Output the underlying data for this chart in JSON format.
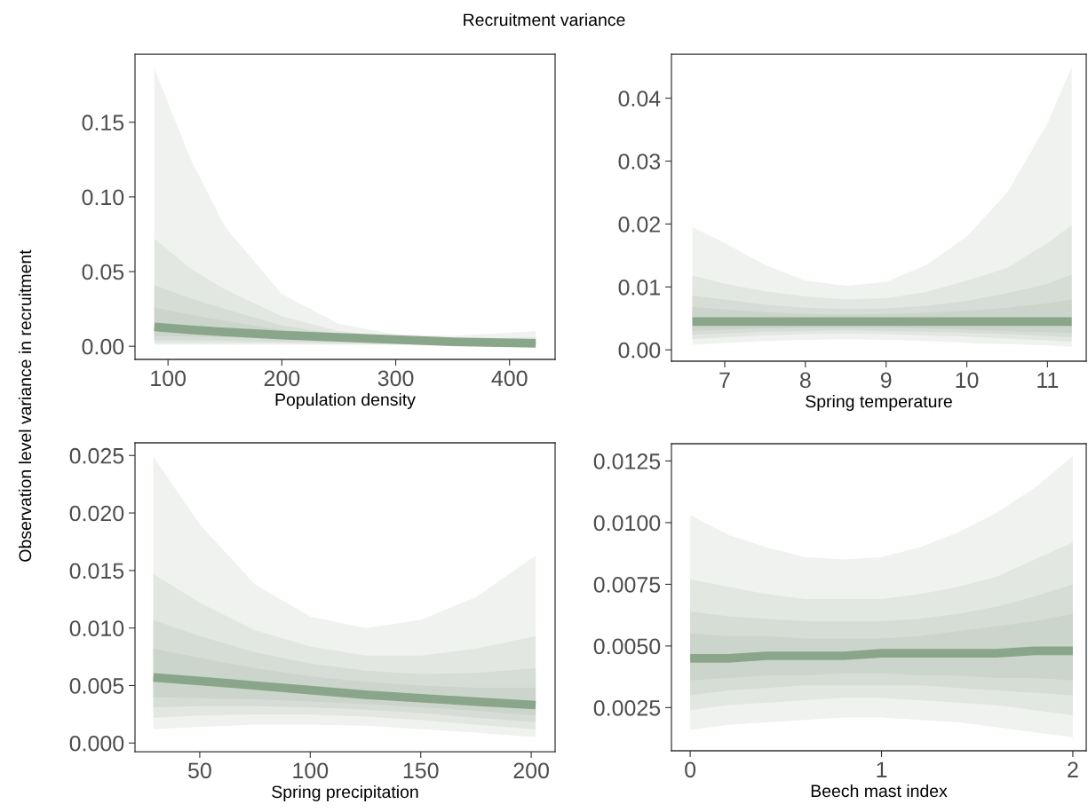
{
  "chart_data": [
    {
      "type": "line",
      "title": "Recruitment variance",
      "ylabel": "Observation level variance in recruitment",
      "xlabel": "Population density",
      "x": [
        88,
        120,
        150,
        200,
        250,
        300,
        350,
        423
      ],
      "xlim": [
        71,
        440
      ],
      "xticks": [
        100,
        200,
        300,
        400
      ],
      "ylim": [
        -0.0088,
        0.1956
      ],
      "yticks": [
        {
          "value": 0,
          "label": "0.00"
        },
        {
          "value": 0.05,
          "label": "0.05"
        },
        {
          "value": 0.1,
          "label": "0.10"
        },
        {
          "value": 0.15,
          "label": "0.15"
        }
      ],
      "series": [
        {
          "color": "#eff2ef",
          "values": [
            null,
            null,
            null,
            null,
            null,
            null,
            null,
            null
          ],
          "lower": [
            0.001,
            0.001,
            0.001,
            0.001,
            0.001,
            0.001,
            0.0005,
            0.0003
          ],
          "upper": [
            0.186,
            0.125,
            0.08,
            0.035,
            0.015,
            0.008,
            0.007,
            0.01
          ]
        },
        {
          "color": "#e2e7e2",
          "values": [
            null,
            null,
            null,
            null,
            null,
            null,
            null,
            null
          ],
          "lower": [
            0.002,
            0.002,
            0.002,
            0.002,
            0.0015,
            0.0012,
            0.001,
            0.0008
          ],
          "upper": [
            0.072,
            0.052,
            0.038,
            0.02,
            0.01,
            0.006,
            0.005,
            0.006
          ]
        },
        {
          "color": "#d6ddd6",
          "values": [
            null,
            null,
            null,
            null,
            null,
            null,
            null,
            null
          ],
          "lower": [
            0.004,
            0.004,
            0.0035,
            0.003,
            0.0025,
            0.002,
            0.0015,
            0.001
          ],
          "upper": [
            0.041,
            0.032,
            0.025,
            0.014,
            0.008,
            0.005,
            0.004,
            0.004
          ]
        },
        {
          "color": "#cbd5cb",
          "values": [
            null,
            null,
            null,
            null,
            null,
            null,
            null,
            null
          ],
          "lower": [
            0.007,
            0.0065,
            0.006,
            0.005,
            0.004,
            0.003,
            0.002,
            0.0015
          ],
          "upper": [
            0.026,
            0.021,
            0.017,
            0.011,
            0.007,
            0.005,
            0.003,
            0.003
          ]
        },
        {
          "color": "#8aa68a",
          "values": [
            0.013,
            0.011,
            0.0095,
            0.0075,
            0.006,
            0.0045,
            0.003,
            0.002
          ]
        }
      ]
    },
    {
      "type": "line",
      "xlabel": "Spring temperature",
      "x": [
        6.6,
        7,
        7.5,
        8,
        8.5,
        9,
        9.5,
        10,
        10.5,
        11,
        11.3
      ],
      "xlim": [
        6.34,
        11.48
      ],
      "xticks": [
        7,
        8,
        9,
        10,
        11
      ],
      "ylim": [
        -0.0018,
        0.047
      ],
      "yticks": [
        {
          "value": 0,
          "label": "0.00"
        },
        {
          "value": 0.01,
          "label": "0.01"
        },
        {
          "value": 0.02,
          "label": "0.02"
        },
        {
          "value": 0.03,
          "label": "0.03"
        },
        {
          "value": 0.04,
          "label": "0.04"
        }
      ],
      "series": [
        {
          "color": "#eff2ef",
          "values": [
            null,
            null,
            null,
            null,
            null,
            null,
            null,
            null,
            null,
            null,
            null
          ],
          "lower": [
            0.0008,
            0.0011,
            0.0014,
            0.0016,
            0.0017,
            0.0016,
            0.0014,
            0.0011,
            0.0009,
            0.0007,
            0.0005
          ],
          "upper": [
            0.0195,
            0.017,
            0.0135,
            0.011,
            0.0102,
            0.0108,
            0.0135,
            0.018,
            0.025,
            0.036,
            0.045
          ]
        },
        {
          "color": "#e2e7e2",
          "values": [
            null,
            null,
            null,
            null,
            null,
            null,
            null,
            null,
            null,
            null,
            null
          ],
          "lower": [
            0.0017,
            0.002,
            0.0023,
            0.0025,
            0.0026,
            0.0025,
            0.0023,
            0.0021,
            0.0018,
            0.0015,
            0.0013
          ],
          "upper": [
            0.0118,
            0.0105,
            0.0093,
            0.0085,
            0.008,
            0.0082,
            0.0092,
            0.011,
            0.013,
            0.017,
            0.0198
          ]
        },
        {
          "color": "#d6ddd6",
          "values": [
            null,
            null,
            null,
            null,
            null,
            null,
            null,
            null,
            null,
            null,
            null
          ],
          "lower": [
            0.0024,
            0.0026,
            0.0029,
            0.003,
            0.0031,
            0.003,
            0.0029,
            0.0027,
            0.0025,
            0.0022,
            0.002
          ],
          "upper": [
            0.0086,
            0.008,
            0.0072,
            0.0067,
            0.0065,
            0.0066,
            0.007,
            0.0078,
            0.009,
            0.0105,
            0.012
          ]
        },
        {
          "color": "#cbd5cb",
          "values": [
            null,
            null,
            null,
            null,
            null,
            null,
            null,
            null,
            null,
            null,
            null
          ],
          "lower": [
            0.003,
            0.0032,
            0.0034,
            0.0035,
            0.0035,
            0.0035,
            0.0034,
            0.0032,
            0.003,
            0.0028,
            0.0027
          ],
          "upper": [
            0.0068,
            0.0064,
            0.006,
            0.0057,
            0.0056,
            0.0057,
            0.0059,
            0.0062,
            0.0067,
            0.0074,
            0.008
          ]
        },
        {
          "color": "#8aa68a",
          "values": [
            0.0045,
            0.0045,
            0.0045,
            0.0045,
            0.0045,
            0.0045,
            0.0045,
            0.0045,
            0.0045,
            0.0045,
            0.0045
          ]
        }
      ]
    },
    {
      "type": "line",
      "xlabel": "Spring precipitation",
      "x": [
        29,
        50,
        75,
        100,
        125,
        150,
        175,
        202
      ],
      "xlim": [
        20.7,
        210.8
      ],
      "xticks": [
        50,
        100,
        150,
        200
      ],
      "ylim": [
        -0.00075,
        0.0261
      ],
      "yticks": [
        {
          "value": 0,
          "label": "0.000"
        },
        {
          "value": 0.005,
          "label": "0.005"
        },
        {
          "value": 0.01,
          "label": "0.010"
        },
        {
          "value": 0.015,
          "label": "0.015"
        },
        {
          "value": 0.02,
          "label": "0.020"
        },
        {
          "value": 0.025,
          "label": "0.025"
        }
      ],
      "series": [
        {
          "color": "#eff2ef",
          "values": [
            null,
            null,
            null,
            null,
            null,
            null,
            null,
            null
          ],
          "lower": [
            0.0012,
            0.0014,
            0.0016,
            0.0016,
            0.0015,
            0.0012,
            0.0009,
            0.0005
          ],
          "upper": [
            0.0249,
            0.019,
            0.0138,
            0.011,
            0.01,
            0.0107,
            0.0127,
            0.0163
          ]
        },
        {
          "color": "#e2e7e2",
          "values": [
            null,
            null,
            null,
            null,
            null,
            null,
            null,
            null
          ],
          "lower": [
            0.0022,
            0.0024,
            0.0025,
            0.0025,
            0.0023,
            0.002,
            0.0016,
            0.0012
          ],
          "upper": [
            0.0147,
            0.0122,
            0.0098,
            0.0084,
            0.0076,
            0.0076,
            0.0082,
            0.0093
          ]
        },
        {
          "color": "#d6ddd6",
          "values": [
            null,
            null,
            null,
            null,
            null,
            null,
            null,
            null
          ],
          "lower": [
            0.0031,
            0.0032,
            0.0032,
            0.0031,
            0.0029,
            0.0026,
            0.0022,
            0.0018
          ],
          "upper": [
            0.0107,
            0.0093,
            0.0079,
            0.0069,
            0.0063,
            0.006,
            0.0061,
            0.0065
          ]
        },
        {
          "color": "#cbd5cb",
          "values": [
            null,
            null,
            null,
            null,
            null,
            null,
            null,
            null
          ],
          "lower": [
            0.004,
            0.0039,
            0.0038,
            0.0036,
            0.0034,
            0.0031,
            0.0028,
            0.0024
          ],
          "upper": [
            0.0082,
            0.0074,
            0.0065,
            0.0058,
            0.0053,
            0.005,
            0.0048,
            0.0048
          ]
        },
        {
          "color": "#8aa68a",
          "values": [
            0.0057,
            0.0054,
            0.005,
            0.0046,
            0.0042,
            0.0039,
            0.0036,
            0.0033
          ]
        }
      ]
    },
    {
      "type": "line",
      "xlabel": "Beech mast index",
      "x": [
        0,
        0.2,
        0.4,
        0.6,
        0.8,
        1.0,
        1.2,
        1.4,
        1.6,
        1.8,
        2.0
      ],
      "xlim": [
        -0.098,
        2.07
      ],
      "xticks": [
        0,
        1,
        2
      ],
      "ylim": [
        0.00075,
        0.0132
      ],
      "yticks": [
        {
          "value": 0.0025,
          "label": "0.0025"
        },
        {
          "value": 0.005,
          "label": "0.0050"
        },
        {
          "value": 0.0075,
          "label": "0.0075"
        },
        {
          "value": 0.01,
          "label": "0.0100"
        },
        {
          "value": 0.0125,
          "label": "0.0125"
        }
      ],
      "series": [
        {
          "color": "#eff2ef",
          "values": [
            null,
            null,
            null,
            null,
            null,
            null,
            null,
            null,
            null,
            null,
            null
          ],
          "lower": [
            0.0016,
            0.0018,
            0.0019,
            0.002,
            0.0021,
            0.0021,
            0.002,
            0.0019,
            0.0017,
            0.0015,
            0.0013
          ],
          "upper": [
            0.0103,
            0.0095,
            0.009,
            0.0086,
            0.0085,
            0.0086,
            0.009,
            0.0096,
            0.0104,
            0.0114,
            0.0127
          ]
        },
        {
          "color": "#e2e7e2",
          "values": [
            null,
            null,
            null,
            null,
            null,
            null,
            null,
            null,
            null,
            null,
            null
          ],
          "lower": [
            0.0024,
            0.0026,
            0.0027,
            0.0028,
            0.0029,
            0.0029,
            0.0028,
            0.0027,
            0.0026,
            0.0024,
            0.0022
          ],
          "upper": [
            0.0077,
            0.0074,
            0.0071,
            0.0069,
            0.0069,
            0.0069,
            0.0071,
            0.0074,
            0.0078,
            0.0085,
            0.0092
          ]
        },
        {
          "color": "#d6ddd6",
          "values": [
            null,
            null,
            null,
            null,
            null,
            null,
            null,
            null,
            null,
            null,
            null
          ],
          "lower": [
            0.003,
            0.0032,
            0.0033,
            0.0034,
            0.0034,
            0.0034,
            0.0034,
            0.0033,
            0.0032,
            0.0031,
            0.003
          ],
          "upper": [
            0.0064,
            0.0062,
            0.0061,
            0.006,
            0.006,
            0.006,
            0.0061,
            0.0063,
            0.0066,
            0.007,
            0.0075
          ]
        },
        {
          "color": "#cbd5cb",
          "values": [
            null,
            null,
            null,
            null,
            null,
            null,
            null,
            null,
            null,
            null,
            null
          ],
          "lower": [
            0.0036,
            0.0037,
            0.0038,
            0.0038,
            0.0039,
            0.0039,
            0.0038,
            0.0038,
            0.0037,
            0.0037,
            0.0036
          ],
          "upper": [
            0.0055,
            0.0054,
            0.0054,
            0.0053,
            0.0053,
            0.0053,
            0.0054,
            0.0056,
            0.0058,
            0.006,
            0.0063
          ]
        },
        {
          "color": "#8aa68a",
          "values": [
            0.0045,
            0.0045,
            0.0046,
            0.0046,
            0.0046,
            0.0047,
            0.0047,
            0.0047,
            0.0047,
            0.0048,
            0.0048
          ]
        }
      ]
    }
  ]
}
